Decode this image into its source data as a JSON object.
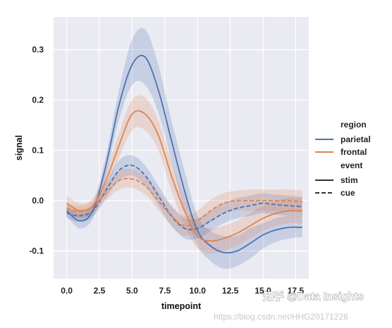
{
  "chart_data": {
    "type": "line",
    "xlabel": "timepoint",
    "ylabel": "signal",
    "xlim": [
      -1,
      18.5
    ],
    "ylim": [
      -0.155,
      0.365
    ],
    "x_ticks": [
      0.0,
      2.5,
      5.0,
      7.5,
      10.0,
      12.5,
      15.0,
      17.5
    ],
    "x_tick_labels": [
      "0.0",
      "2.5",
      "5.0",
      "7.5",
      "10.0",
      "12.5",
      "15.0",
      "17.5"
    ],
    "y_ticks": [
      -0.1,
      0.0,
      0.1,
      0.2,
      0.3
    ],
    "y_tick_labels": [
      "-0.1",
      "0.0",
      "0.1",
      "0.2",
      "0.3"
    ],
    "grid": true,
    "legend_position": "right",
    "legend": {
      "hue_title": "region",
      "hue_entries": [
        "parietal",
        "frontal"
      ],
      "style_title": "event",
      "style_entries": [
        "stim",
        "cue"
      ]
    },
    "colors": {
      "parietal": "#4c72b0",
      "frontal": "#dd8452",
      "background": "#eaeaf2",
      "grid": "#ffffff"
    },
    "x": [
      0,
      1,
      2,
      3,
      4,
      5,
      6,
      7,
      8,
      9,
      10,
      11,
      12,
      13,
      14,
      15,
      16,
      17,
      18
    ],
    "series": [
      {
        "region": "parietal",
        "event": "stim",
        "values": [
          -0.02,
          -0.04,
          -0.02,
          0.07,
          0.19,
          0.27,
          0.285,
          0.22,
          0.12,
          0.02,
          -0.06,
          -0.09,
          -0.103,
          -0.1,
          -0.085,
          -0.068,
          -0.058,
          -0.053,
          -0.053
        ],
        "ci_low": [
          -0.03,
          -0.055,
          -0.035,
          0.05,
          0.16,
          0.23,
          0.23,
          0.175,
          0.08,
          -0.02,
          -0.09,
          -0.12,
          -0.135,
          -0.13,
          -0.115,
          -0.095,
          -0.082,
          -0.075,
          -0.072
        ],
        "ci_high": [
          -0.008,
          -0.025,
          -0.005,
          0.09,
          0.22,
          0.32,
          0.34,
          0.27,
          0.16,
          0.06,
          -0.03,
          -0.06,
          -0.07,
          -0.07,
          -0.055,
          -0.045,
          -0.035,
          -0.03,
          -0.032
        ]
      },
      {
        "region": "frontal",
        "event": "stim",
        "values": [
          -0.005,
          -0.02,
          -0.01,
          0.04,
          0.11,
          0.172,
          0.172,
          0.13,
          0.05,
          -0.02,
          -0.07,
          -0.08,
          -0.075,
          -0.065,
          -0.05,
          -0.035,
          -0.025,
          -0.02,
          -0.02
        ],
        "ci_low": [
          -0.02,
          -0.035,
          -0.025,
          0.02,
          0.085,
          0.14,
          0.14,
          0.1,
          0.02,
          -0.05,
          -0.095,
          -0.105,
          -0.1,
          -0.09,
          -0.075,
          -0.06,
          -0.05,
          -0.045,
          -0.045
        ],
        "ci_high": [
          0.01,
          -0.005,
          0.005,
          0.06,
          0.135,
          0.2,
          0.205,
          0.16,
          0.08,
          0.01,
          -0.045,
          -0.055,
          -0.05,
          -0.04,
          -0.025,
          -0.01,
          0.0,
          0.005,
          0.005
        ]
      },
      {
        "region": "parietal",
        "event": "cue",
        "values": [
          -0.025,
          -0.03,
          -0.02,
          0.02,
          0.06,
          0.07,
          0.05,
          0.01,
          -0.03,
          -0.055,
          -0.055,
          -0.04,
          -0.025,
          -0.015,
          -0.01,
          -0.005,
          -0.008,
          -0.01,
          -0.012
        ],
        "ci_low": [
          -0.035,
          -0.042,
          -0.032,
          0.005,
          0.04,
          0.05,
          0.03,
          -0.01,
          -0.05,
          -0.075,
          -0.075,
          -0.06,
          -0.045,
          -0.035,
          -0.03,
          -0.025,
          -0.028,
          -0.03,
          -0.032
        ],
        "ci_high": [
          -0.015,
          -0.018,
          -0.008,
          0.035,
          0.08,
          0.09,
          0.07,
          0.03,
          -0.01,
          -0.035,
          -0.035,
          -0.02,
          -0.005,
          0.005,
          0.01,
          0.015,
          0.012,
          0.01,
          0.008
        ]
      },
      {
        "region": "frontal",
        "event": "cue",
        "values": [
          -0.015,
          -0.022,
          -0.012,
          0.015,
          0.04,
          0.043,
          0.03,
          0.0,
          -0.03,
          -0.05,
          -0.04,
          -0.02,
          -0.005,
          0.0,
          0.0,
          0.0,
          0.0,
          0.0,
          -0.002
        ],
        "ci_low": [
          -0.025,
          -0.035,
          -0.025,
          0.0,
          0.022,
          0.025,
          0.012,
          -0.018,
          -0.05,
          -0.07,
          -0.06,
          -0.042,
          -0.025,
          -0.02,
          -0.02,
          -0.02,
          -0.02,
          -0.022,
          -0.025
        ],
        "ci_high": [
          -0.005,
          -0.01,
          0.0,
          0.03,
          0.058,
          0.062,
          0.048,
          0.018,
          -0.01,
          -0.03,
          -0.02,
          0.002,
          0.015,
          0.02,
          0.022,
          0.022,
          0.022,
          0.022,
          0.02
        ]
      }
    ]
  },
  "watermark": {
    "line1": "知乎 @Data Insights",
    "line2": "https://blog.csdn.net/HHG20171226"
  }
}
